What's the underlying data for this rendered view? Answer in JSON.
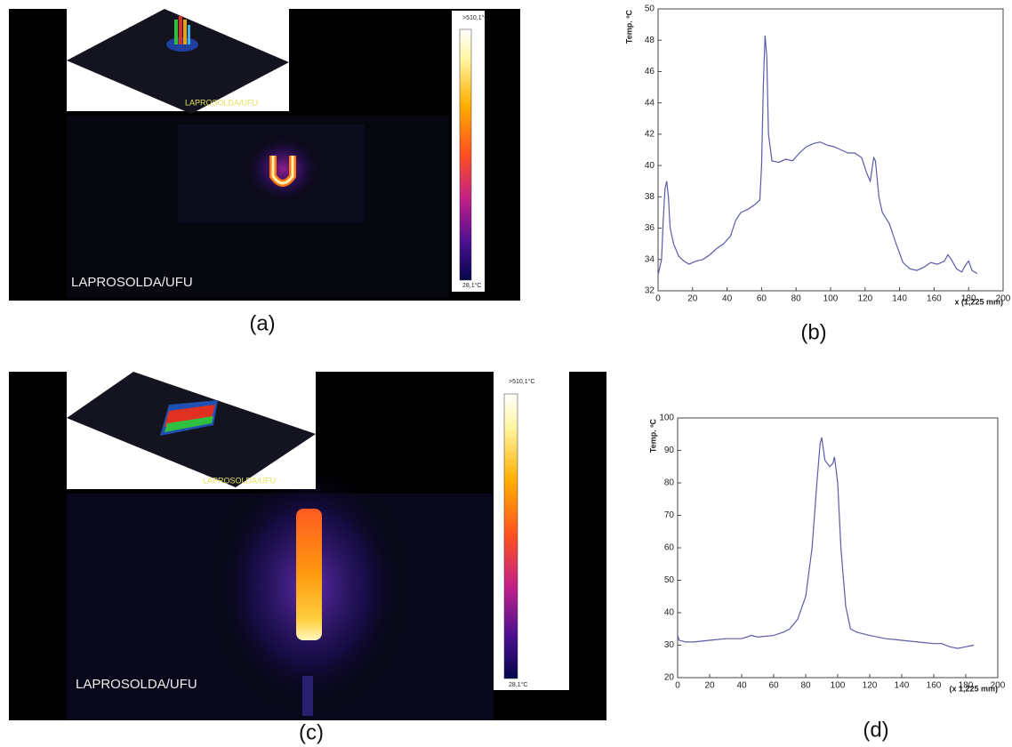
{
  "panels": [
    {
      "caption": "(a)",
      "watermark": "LAPROSOLDA/UFU",
      "inset_watermark": "LAPROSOLDA/UFU",
      "colorbar_max": ">510,1°C",
      "colorbar_min": "28,1°C"
    },
    {
      "caption": "(c)",
      "watermark": "LAPROSOLDA/UFU",
      "inset_watermark": "LAPROSOLDA/UFU",
      "colorbar_max": ">510,1°C",
      "colorbar_min": "28,1°C"
    }
  ],
  "chart_data": [
    {
      "type": "line",
      "caption": "(b)",
      "ylabel": "Temp. ºC",
      "xlabel": "x (1,225 mm)",
      "x": [
        0,
        2,
        3,
        4,
        5,
        6,
        7,
        9,
        12,
        15,
        18,
        22,
        26,
        30,
        34,
        38,
        42,
        45,
        48,
        52,
        56,
        59,
        60,
        61,
        62,
        63,
        64,
        66,
        70,
        74,
        78,
        82,
        86,
        90,
        94,
        98,
        102,
        106,
        110,
        114,
        118,
        121,
        123,
        125,
        126,
        128,
        130,
        134,
        138,
        142,
        146,
        150,
        154,
        158,
        162,
        166,
        168,
        170,
        173,
        176,
        178,
        180,
        182,
        185
      ],
      "series": [
        {
          "color": "#5b5ba8",
          "values": [
            33,
            34,
            36.5,
            38.5,
            39,
            38,
            36,
            35,
            34.2,
            33.9,
            33.7,
            33.9,
            34,
            34.3,
            34.7,
            35,
            35.5,
            36.5,
            37,
            37.2,
            37.5,
            37.8,
            40,
            45,
            48.3,
            47,
            42,
            40.3,
            40.2,
            40.4,
            40.3,
            40.8,
            41.2,
            41.4,
            41.5,
            41.3,
            41.2,
            41,
            40.8,
            40.8,
            40.5,
            39.5,
            39,
            40.5,
            40.3,
            38,
            37,
            36.3,
            35,
            33.8,
            33.4,
            33.3,
            33.5,
            33.8,
            33.7,
            33.9,
            34.3,
            34,
            33.4,
            33.2,
            33.6,
            33.9,
            33.3,
            33.1
          ]
        }
      ],
      "xlim": [
        0,
        200
      ],
      "xticks": [
        0,
        20,
        40,
        60,
        80,
        100,
        120,
        140,
        160,
        180,
        200
      ],
      "ylim": [
        32,
        50
      ],
      "yticks": [
        32,
        34,
        36,
        38,
        40,
        42,
        44,
        46,
        48,
        50
      ]
    },
    {
      "type": "line",
      "caption": "(d)",
      "ylabel": "Temp. ºC",
      "xlabel": "(x 1,225 mm)",
      "x": [
        0,
        1,
        5,
        10,
        20,
        30,
        40,
        46,
        50,
        60,
        66,
        70,
        75,
        80,
        84,
        87,
        89,
        90,
        92,
        95,
        97,
        98,
        100,
        102,
        105,
        108,
        112,
        120,
        130,
        140,
        150,
        160,
        165,
        170,
        175,
        180,
        185
      ],
      "series": [
        {
          "color": "#5b5ba8",
          "values": [
            33,
            31.5,
            31,
            31,
            31.5,
            32,
            32,
            33,
            32.5,
            33,
            34,
            35,
            38,
            45,
            60,
            80,
            92,
            94,
            87,
            85,
            86,
            88,
            80,
            60,
            42,
            35,
            34,
            33,
            32,
            31.5,
            31,
            30.5,
            30.5,
            29.5,
            29,
            29.5,
            30
          ]
        }
      ],
      "xlim": [
        0,
        200
      ],
      "xticks": [
        0,
        20,
        40,
        60,
        80,
        100,
        120,
        140,
        160,
        180,
        200
      ],
      "ylim": [
        20,
        100
      ],
      "yticks": [
        20,
        30,
        40,
        50,
        60,
        70,
        80,
        90,
        100
      ]
    }
  ]
}
